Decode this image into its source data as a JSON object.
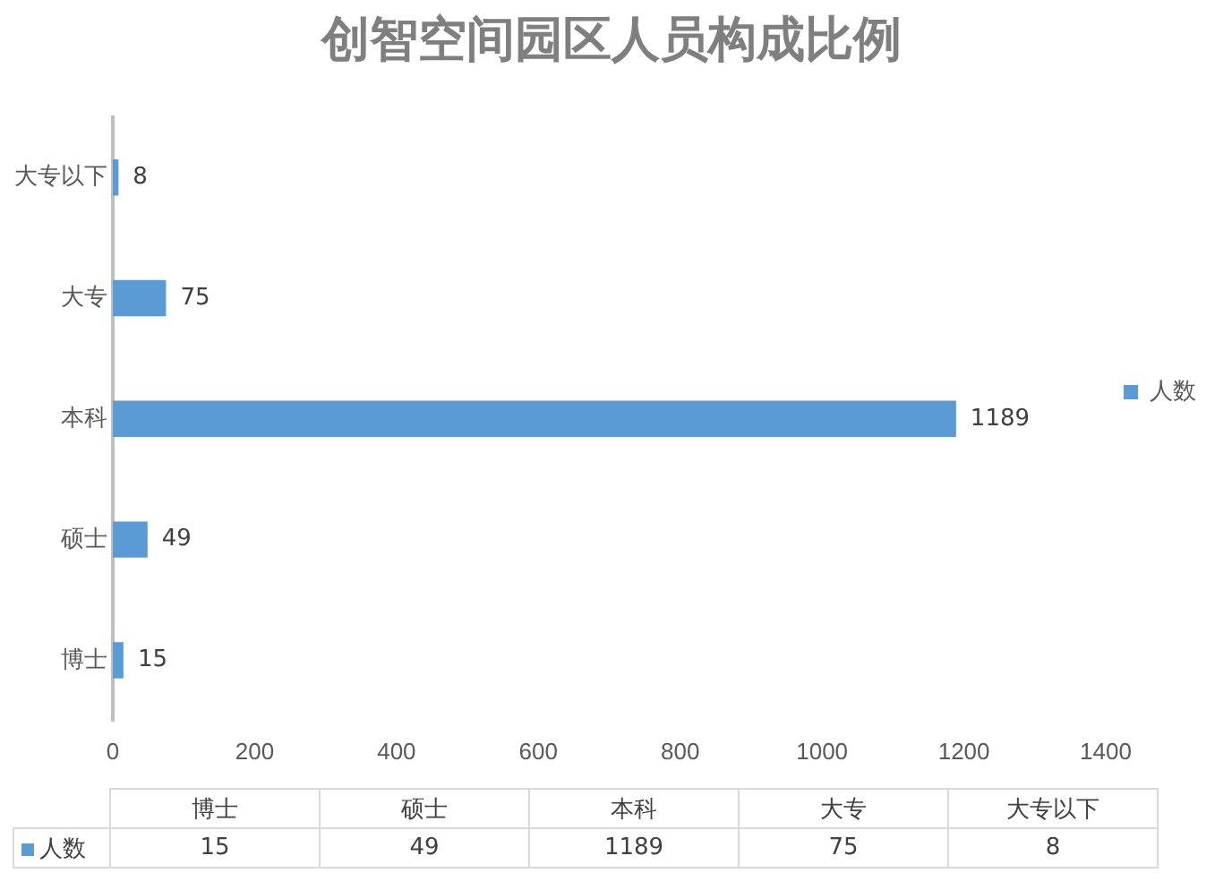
{
  "chart_data": [
    {
      "type": "bar",
      "orientation": "horizontal",
      "title": "创智空间园区人员构成比例",
      "categories": [
        "大专以下",
        "大专",
        "本科",
        "硕士",
        "博士"
      ],
      "series": [
        {
          "name": "人数",
          "color": "#5b9bd5",
          "values": [
            8,
            75,
            1189,
            49,
            15
          ]
        }
      ],
      "xlim": [
        0,
        1400
      ],
      "xticks": [
        0,
        200,
        400,
        600,
        800,
        1000,
        1200,
        1400
      ],
      "grid": false,
      "legend": "right",
      "data_labels": true
    },
    {
      "type": "other",
      "categories": [
        "博士",
        "硕士",
        "本科",
        "大专",
        "大专以下"
      ],
      "series": [
        {
          "name": "人数",
          "color": "#5b9bd5",
          "values": [
            15,
            49,
            1189,
            75,
            8
          ]
        }
      ],
      "legend": "left",
      "data_labels": true
    }
  ]
}
